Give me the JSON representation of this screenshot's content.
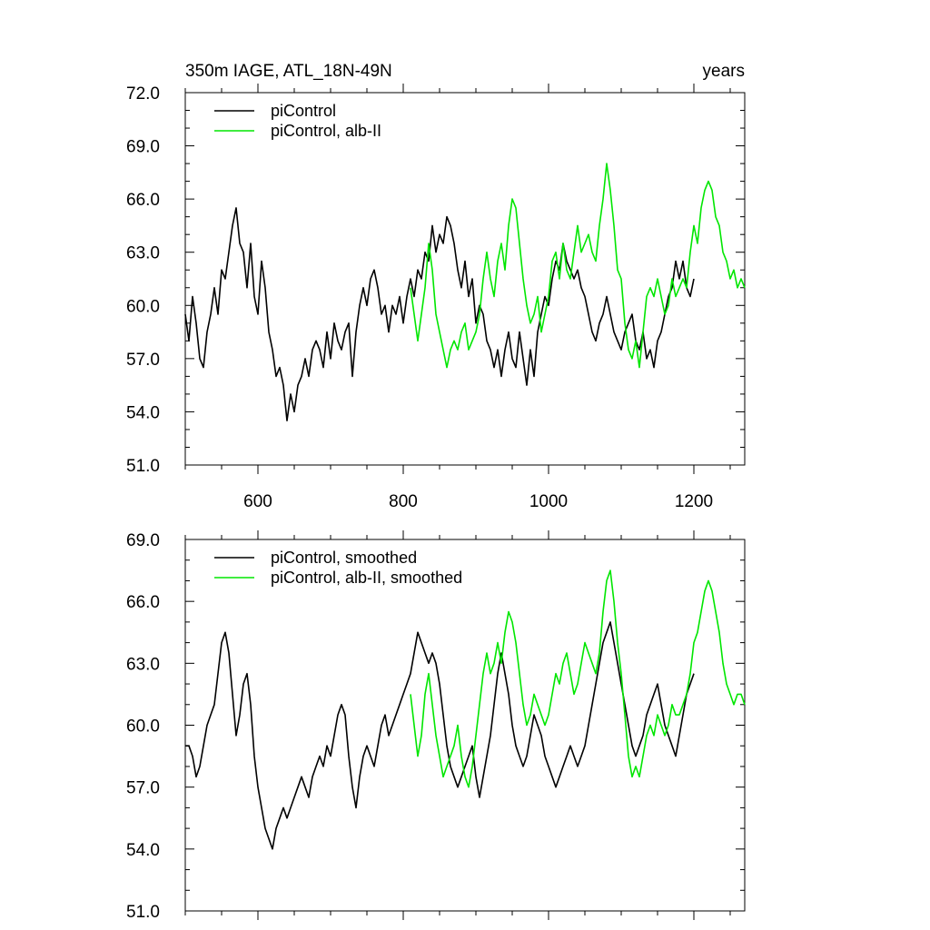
{
  "figure": {
    "left_title": "350m IAGE, ATL_18N-49N",
    "right_title": "years"
  },
  "colors": {
    "series_a": "#000000",
    "series_b": "#00e600"
  },
  "chart_data": [
    {
      "type": "line",
      "xlim": [
        500,
        1270
      ],
      "ylim": [
        51,
        72
      ],
      "yticks": [
        51,
        54,
        57,
        60,
        63,
        66,
        69,
        72
      ],
      "ytick_labels": [
        "51.0",
        "54.0",
        "57.0",
        "60.0",
        "63.0",
        "66.0",
        "69.0",
        "72.0"
      ],
      "xticks": [
        600,
        800,
        1000,
        1200
      ],
      "xtick_labels": [
        "600",
        "800",
        "1000",
        "1200"
      ],
      "grid": false,
      "legend": "top-left",
      "series": [
        {
          "name": "piControl",
          "color": "#000000",
          "x": [
            500,
            505,
            510,
            515,
            520,
            525,
            530,
            535,
            540,
            545,
            550,
            555,
            560,
            565,
            570,
            575,
            580,
            585,
            590,
            595,
            600,
            605,
            610,
            615,
            620,
            625,
            630,
            635,
            640,
            645,
            650,
            655,
            660,
            665,
            670,
            675,
            680,
            685,
            690,
            695,
            700,
            705,
            710,
            715,
            720,
            725,
            730,
            735,
            740,
            745,
            750,
            755,
            760,
            765,
            770,
            775,
            780,
            785,
            790,
            795,
            800,
            805,
            810,
            815,
            820,
            825,
            830,
            835,
            840,
            845,
            850,
            855,
            860,
            865,
            870,
            875,
            880,
            885,
            890,
            895,
            900,
            905,
            910,
            915,
            920,
            925,
            930,
            935,
            940,
            945,
            950,
            955,
            960,
            965,
            970,
            975,
            980,
            985,
            990,
            995,
            1000,
            1005,
            1010,
            1015,
            1020,
            1025,
            1030,
            1035,
            1040,
            1045,
            1050,
            1055,
            1060,
            1065,
            1070,
            1075,
            1080,
            1085,
            1090,
            1095,
            1100,
            1105,
            1110,
            1115,
            1120,
            1125,
            1130,
            1135,
            1140,
            1145,
            1150,
            1155,
            1160,
            1165,
            1170,
            1175,
            1180,
            1185,
            1190,
            1195,
            1200
          ],
          "y": [
            59.5,
            58.0,
            60.5,
            59.0,
            57.0,
            56.5,
            58.5,
            59.5,
            61.0,
            59.5,
            62.0,
            61.5,
            63.0,
            64.5,
            65.5,
            63.5,
            63.0,
            61.0,
            63.5,
            60.5,
            59.5,
            62.5,
            61.0,
            58.5,
            57.5,
            56.0,
            56.5,
            55.5,
            53.5,
            55.0,
            54.0,
            55.5,
            56.0,
            57.0,
            56.0,
            57.5,
            58.0,
            57.5,
            56.5,
            58.5,
            57.0,
            59.0,
            58.0,
            57.5,
            58.5,
            59.0,
            56.0,
            58.5,
            60.0,
            61.0,
            60.0,
            61.5,
            62.0,
            61.0,
            59.5,
            60.0,
            58.5,
            60.0,
            59.5,
            60.5,
            59.0,
            60.5,
            61.5,
            60.5,
            62.0,
            61.5,
            63.0,
            62.5,
            64.5,
            63.0,
            64.0,
            63.5,
            65.0,
            64.5,
            63.5,
            62.0,
            61.0,
            62.5,
            60.5,
            61.5,
            59.0,
            60.0,
            59.5,
            58.0,
            57.5,
            56.5,
            57.5,
            56.0,
            57.5,
            58.5,
            57.0,
            56.5,
            58.5,
            57.0,
            55.5,
            57.5,
            56.0,
            58.5,
            59.5,
            60.5,
            60.0,
            61.5,
            62.5,
            62.0,
            63.5,
            62.5,
            62.0,
            61.5,
            62.0,
            61.0,
            60.5,
            59.5,
            58.5,
            58.0,
            59.0,
            59.5,
            60.5,
            59.5,
            58.5,
            58.0,
            57.5,
            58.5,
            59.0,
            59.5,
            58.0,
            57.5,
            58.5,
            57.0,
            57.5,
            56.5,
            58.0,
            58.5,
            59.5,
            60.5,
            61.0,
            62.5,
            61.5,
            62.5,
            61.0,
            60.5,
            61.5
          ]
        },
        {
          "name": "piControl, alb-II",
          "color": "#00e600",
          "x": [
            810,
            815,
            820,
            825,
            830,
            835,
            840,
            845,
            850,
            855,
            860,
            865,
            870,
            875,
            880,
            885,
            890,
            895,
            900,
            905,
            910,
            915,
            920,
            925,
            930,
            935,
            940,
            945,
            950,
            955,
            960,
            965,
            970,
            975,
            980,
            985,
            990,
            995,
            1000,
            1005,
            1010,
            1015,
            1020,
            1025,
            1030,
            1035,
            1040,
            1045,
            1050,
            1055,
            1060,
            1065,
            1070,
            1075,
            1080,
            1085,
            1090,
            1095,
            1100,
            1105,
            1110,
            1115,
            1120,
            1125,
            1130,
            1135,
            1140,
            1145,
            1150,
            1155,
            1160,
            1165,
            1170,
            1175,
            1180,
            1185,
            1190,
            1195,
            1200,
            1205,
            1210,
            1215,
            1220,
            1225,
            1230,
            1235,
            1240,
            1245,
            1250,
            1255,
            1260,
            1265,
            1270
          ],
          "y": [
            61.0,
            59.5,
            58.0,
            59.5,
            61.0,
            63.5,
            62.0,
            59.5,
            58.5,
            57.5,
            56.5,
            57.5,
            58.0,
            57.5,
            58.5,
            59.0,
            57.5,
            58.0,
            58.5,
            59.5,
            61.5,
            63.0,
            61.5,
            60.5,
            62.5,
            63.5,
            62.0,
            64.5,
            66.0,
            65.5,
            63.5,
            61.5,
            60.0,
            59.0,
            59.5,
            60.5,
            58.5,
            59.5,
            60.5,
            62.5,
            63.0,
            61.5,
            63.5,
            62.0,
            61.5,
            63.0,
            64.5,
            63.0,
            63.5,
            64.0,
            63.0,
            62.5,
            64.5,
            66.0,
            68.0,
            66.5,
            64.5,
            62.0,
            61.5,
            59.0,
            57.5,
            57.0,
            58.0,
            56.5,
            58.5,
            60.5,
            61.0,
            60.5,
            61.5,
            60.5,
            59.5,
            60.0,
            61.5,
            60.5,
            61.0,
            61.5,
            61.0,
            63.0,
            64.5,
            63.5,
            65.5,
            66.5,
            67.0,
            66.5,
            65.0,
            64.5,
            63.0,
            62.5,
            61.5,
            62.0,
            61.0,
            61.5,
            61.0
          ]
        }
      ]
    },
    {
      "type": "line",
      "xlim": [
        500,
        1270
      ],
      "ylim": [
        51,
        69
      ],
      "yticks": [
        51,
        54,
        57,
        60,
        63,
        66,
        69
      ],
      "ytick_labels": [
        "51.0",
        "54.0",
        "57.0",
        "60.0",
        "63.0",
        "66.0",
        "69.0"
      ],
      "xticks": [
        600,
        800,
        1000,
        1200
      ],
      "xtick_labels": [],
      "grid": false,
      "legend": "top-left",
      "series": [
        {
          "name": "piControl, smoothed",
          "color": "#000000",
          "x": [
            500,
            505,
            510,
            515,
            520,
            525,
            530,
            535,
            540,
            545,
            550,
            555,
            560,
            565,
            570,
            575,
            580,
            585,
            590,
            595,
            600,
            605,
            610,
            615,
            620,
            625,
            630,
            635,
            640,
            645,
            650,
            655,
            660,
            665,
            670,
            675,
            680,
            685,
            690,
            695,
            700,
            705,
            710,
            715,
            720,
            725,
            730,
            735,
            740,
            745,
            750,
            755,
            760,
            765,
            770,
            775,
            780,
            785,
            790,
            795,
            800,
            805,
            810,
            815,
            820,
            825,
            830,
            835,
            840,
            845,
            850,
            855,
            860,
            865,
            870,
            875,
            880,
            885,
            890,
            895,
            900,
            905,
            910,
            915,
            920,
            925,
            930,
            935,
            940,
            945,
            950,
            955,
            960,
            965,
            970,
            975,
            980,
            985,
            990,
            995,
            1000,
            1005,
            1010,
            1015,
            1020,
            1025,
            1030,
            1035,
            1040,
            1045,
            1050,
            1055,
            1060,
            1065,
            1070,
            1075,
            1080,
            1085,
            1090,
            1095,
            1100,
            1105,
            1110,
            1115,
            1120,
            1125,
            1130,
            1135,
            1140,
            1145,
            1150,
            1155,
            1160,
            1165,
            1170,
            1175,
            1180,
            1185,
            1190,
            1195,
            1200
          ],
          "y": [
            59.0,
            59.0,
            58.5,
            57.5,
            58.0,
            59.0,
            60.0,
            60.5,
            61.0,
            62.5,
            64.0,
            64.5,
            63.5,
            61.5,
            59.5,
            60.5,
            62.0,
            62.5,
            61.0,
            58.5,
            57.0,
            56.0,
            55.0,
            54.5,
            54.0,
            55.0,
            55.5,
            56.0,
            55.5,
            56.0,
            56.5,
            57.0,
            57.5,
            57.0,
            56.5,
            57.5,
            58.0,
            58.5,
            58.0,
            59.0,
            58.5,
            59.5,
            60.5,
            61.0,
            60.5,
            58.5,
            57.0,
            56.0,
            57.5,
            58.5,
            59.0,
            58.5,
            58.0,
            59.0,
            60.0,
            60.5,
            59.5,
            60.0,
            60.5,
            61.0,
            61.5,
            62.0,
            62.5,
            63.5,
            64.5,
            64.0,
            63.5,
            63.0,
            63.5,
            63.0,
            62.0,
            60.5,
            59.0,
            58.0,
            57.5,
            57.0,
            57.5,
            58.0,
            58.5,
            59.0,
            57.5,
            56.5,
            57.5,
            58.5,
            59.5,
            61.0,
            62.5,
            63.5,
            62.5,
            61.5,
            60.0,
            59.0,
            58.5,
            58.0,
            58.5,
            59.5,
            60.5,
            60.0,
            59.5,
            58.5,
            58.0,
            57.5,
            57.0,
            57.5,
            58.0,
            58.5,
            59.0,
            58.5,
            58.0,
            58.5,
            59.0,
            60.0,
            61.0,
            62.0,
            63.0,
            64.0,
            64.5,
            65.0,
            64.0,
            63.0,
            62.0,
            61.0,
            60.0,
            59.0,
            58.5,
            59.0,
            59.5,
            60.5,
            61.0,
            61.5,
            62.0,
            61.0,
            60.0,
            59.5,
            59.0,
            58.5,
            59.5,
            60.5,
            61.5,
            62.0,
            62.5
          ]
        },
        {
          "name": "piControl, alb-II, smoothed",
          "color": "#00e600",
          "x": [
            810,
            815,
            820,
            825,
            830,
            835,
            840,
            845,
            850,
            855,
            860,
            865,
            870,
            875,
            880,
            885,
            890,
            895,
            900,
            905,
            910,
            915,
            920,
            925,
            930,
            935,
            940,
            945,
            950,
            955,
            960,
            965,
            970,
            975,
            980,
            985,
            990,
            995,
            1000,
            1005,
            1010,
            1015,
            1020,
            1025,
            1030,
            1035,
            1040,
            1045,
            1050,
            1055,
            1060,
            1065,
            1070,
            1075,
            1080,
            1085,
            1090,
            1095,
            1100,
            1105,
            1110,
            1115,
            1120,
            1125,
            1130,
            1135,
            1140,
            1145,
            1150,
            1155,
            1160,
            1165,
            1170,
            1175,
            1180,
            1185,
            1190,
            1195,
            1200,
            1205,
            1210,
            1215,
            1220,
            1225,
            1230,
            1235,
            1240,
            1245,
            1250,
            1255,
            1260,
            1265,
            1270
          ],
          "y": [
            61.5,
            60.0,
            58.5,
            59.5,
            61.5,
            62.5,
            61.0,
            59.5,
            58.5,
            57.5,
            58.0,
            58.5,
            59.0,
            60.0,
            58.5,
            57.5,
            57.0,
            58.0,
            59.5,
            61.0,
            62.5,
            63.5,
            62.5,
            63.0,
            64.0,
            63.0,
            64.5,
            65.5,
            65.0,
            64.0,
            62.5,
            61.0,
            60.0,
            60.5,
            61.5,
            61.0,
            60.5,
            60.0,
            60.5,
            61.5,
            62.5,
            62.0,
            63.0,
            63.5,
            62.5,
            61.5,
            62.0,
            63.0,
            64.0,
            63.5,
            63.0,
            62.5,
            63.5,
            65.5,
            67.0,
            67.5,
            66.0,
            64.0,
            62.5,
            60.5,
            58.5,
            57.5,
            58.0,
            57.5,
            58.5,
            59.5,
            60.0,
            59.5,
            60.5,
            60.0,
            59.5,
            60.0,
            61.0,
            60.5,
            60.5,
            61.0,
            61.5,
            62.5,
            64.0,
            64.5,
            65.5,
            66.5,
            67.0,
            66.5,
            65.5,
            64.5,
            63.0,
            62.0,
            61.5,
            61.0,
            61.5,
            61.5,
            61.0
          ]
        }
      ]
    }
  ]
}
